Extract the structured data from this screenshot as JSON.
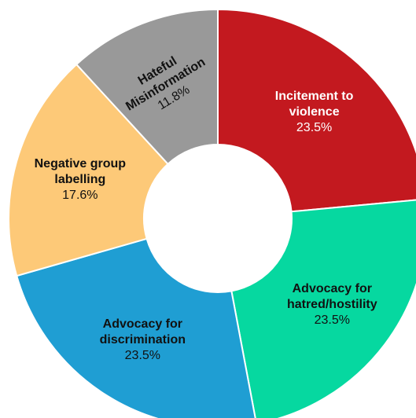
{
  "chart_data": {
    "type": "donut",
    "categories": [
      "Incitement to violence",
      "Advocacy for hatred/hostility",
      "Advocacy for discrimination",
      "Negative group labelling",
      "Hateful Misinformation"
    ],
    "values": [
      23.5,
      23.5,
      23.5,
      17.6,
      11.8
    ],
    "value_labels": [
      "23.5%",
      "23.5%",
      "23.5%",
      "17.6%",
      "11.8%"
    ],
    "colors": [
      "#c3191f",
      "#06d8a0",
      "#1f9ed3",
      "#fdc978",
      "#999999"
    ]
  }
}
